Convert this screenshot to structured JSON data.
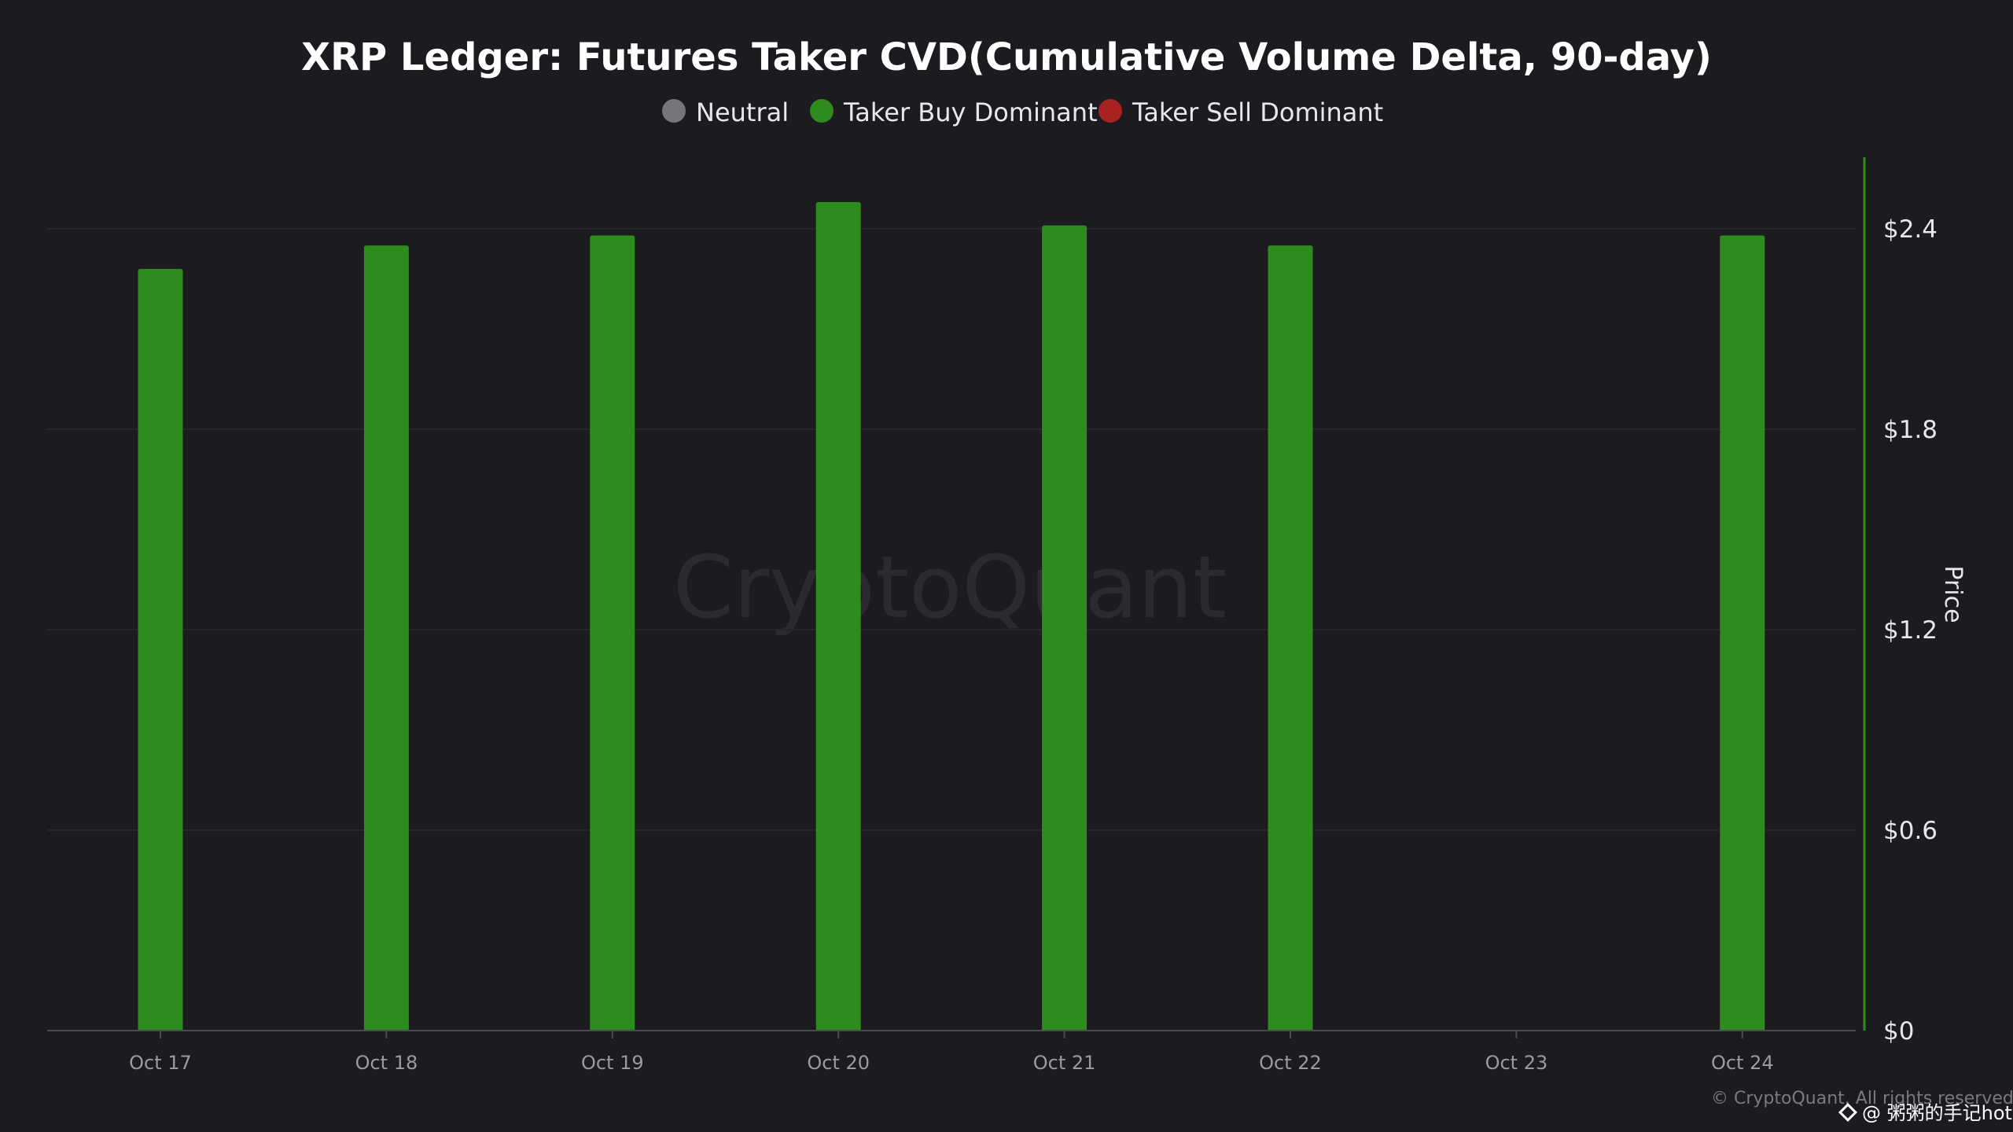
{
  "chart_data": {
    "type": "bar",
    "title": "XRP Ledger: Futures Taker CVD(Cumulative Volume Delta, 90-day)",
    "legend": [
      {
        "name": "Neutral",
        "color": "#75757c"
      },
      {
        "name": "Taker Buy Dominant",
        "color": "#2e8b1e"
      },
      {
        "name": "Taker Sell Dominant",
        "color": "#a82222"
      }
    ],
    "legend_position": "top",
    "categories": [
      "Oct 17",
      "Oct 18",
      "Oct 19",
      "Oct 20",
      "Oct 21",
      "Oct 22",
      "Oct 23",
      "Oct 24"
    ],
    "values": [
      2.28,
      2.35,
      2.38,
      2.48,
      2.41,
      2.35,
      null,
      2.38
    ],
    "bar_status": [
      "Taker Buy Dominant",
      "Taker Buy Dominant",
      "Taker Buy Dominant",
      "Taker Buy Dominant",
      "Taker Buy Dominant",
      "Taker Buy Dominant",
      null,
      "Taker Buy Dominant"
    ],
    "ylabel": "Price",
    "y_axis_side": "right",
    "yticks": [
      "$0",
      "$0.6",
      "$1.2",
      "$1.8",
      "$2.4"
    ],
    "ytick_values": [
      0,
      0.6,
      1.2,
      1.8,
      2.4
    ],
    "ylim": [
      0,
      2.61
    ],
    "grid": true
  },
  "watermark": "CryptoQuant",
  "copyright": "© CryptoQuant. All rights reserved",
  "overlay_watermark": "@ 粥粥的手记hot"
}
